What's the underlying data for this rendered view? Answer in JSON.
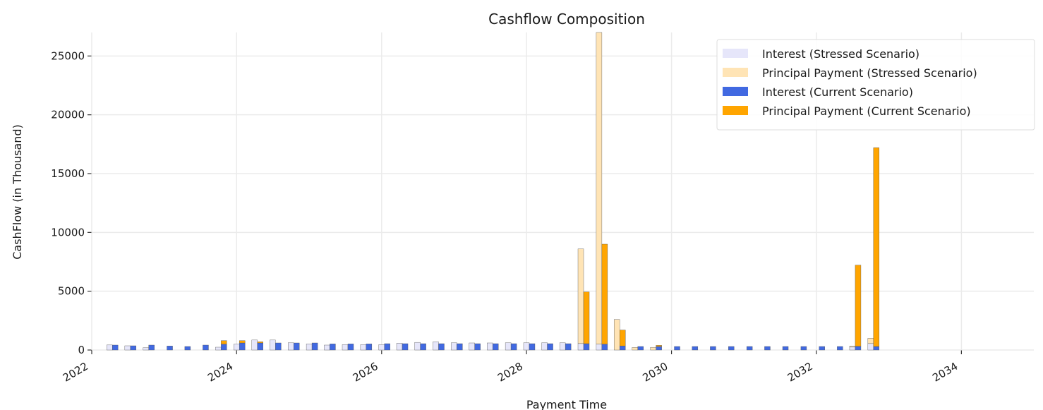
{
  "chart_data": {
    "type": "bar",
    "title": "Cashflow Composition",
    "xlabel": "Payment Time",
    "ylabel": "CashFlow (in Thousand)",
    "xlim": [
      "2022-01-01",
      "2035-01-01"
    ],
    "ylim": [
      0,
      27000
    ],
    "x_ticks": [
      "2022",
      "2024",
      "2026",
      "2028",
      "2030",
      "2032",
      "2034"
    ],
    "y_ticks": [
      0,
      5000,
      10000,
      15000,
      20000,
      25000
    ],
    "grid": true,
    "legend_position": "top-right",
    "dates": [
      "2022-04-15",
      "2022-07-15",
      "2022-10-15",
      "2023-01-15",
      "2023-04-15",
      "2023-07-15",
      "2023-10-15",
      "2024-01-15",
      "2024-04-15",
      "2024-07-15",
      "2024-10-15",
      "2025-01-15",
      "2025-04-15",
      "2025-07-15",
      "2025-10-15",
      "2026-01-15",
      "2026-04-15",
      "2026-07-15",
      "2026-10-15",
      "2027-01-15",
      "2027-04-15",
      "2027-07-15",
      "2027-10-15",
      "2028-01-15",
      "2028-04-15",
      "2028-07-15",
      "2028-10-15",
      "2029-01-15",
      "2029-04-15",
      "2029-07-15",
      "2029-10-15",
      "2030-01-15",
      "2030-04-15",
      "2030-07-15",
      "2030-10-15",
      "2031-01-15",
      "2031-04-15",
      "2031-07-15",
      "2031-10-15",
      "2032-01-15",
      "2032-04-15",
      "2032-07-15",
      "2032-10-15"
    ],
    "series": [
      {
        "name": "Interest (Stressed Scenario)",
        "color": "#e6e6fa",
        "offset": "left",
        "stack": "stressed",
        "values": [
          430,
          360,
          200,
          0,
          0,
          0,
          240,
          500,
          850,
          850,
          620,
          520,
          420,
          460,
          460,
          460,
          580,
          650,
          700,
          620,
          600,
          600,
          620,
          620,
          620,
          620,
          550,
          500,
          0,
          0,
          0,
          0,
          0,
          0,
          0,
          0,
          0,
          0,
          0,
          0,
          0,
          250,
          550
        ]
      },
      {
        "name": "Principal Payment (Stressed Scenario)",
        "color": "#ffe4b5",
        "offset": "left",
        "stack": "stressed",
        "values": [
          0,
          0,
          0,
          0,
          0,
          0,
          0,
          0,
          0,
          0,
          0,
          0,
          0,
          0,
          0,
          0,
          0,
          0,
          0,
          0,
          0,
          0,
          0,
          0,
          0,
          0,
          8050,
          26500,
          2600,
          220,
          230,
          0,
          0,
          0,
          0,
          0,
          0,
          0,
          0,
          0,
          0,
          80,
          450
        ]
      },
      {
        "name": "Interest (Current Scenario)",
        "color": "#4169e1",
        "offset": "right",
        "stack": "current",
        "values": [
          420,
          360,
          420,
          340,
          300,
          420,
          500,
          600,
          600,
          600,
          600,
          600,
          520,
          520,
          520,
          540,
          540,
          540,
          540,
          540,
          540,
          540,
          540,
          540,
          540,
          540,
          540,
          500,
          350,
          300,
          300,
          300,
          300,
          300,
          300,
          300,
          300,
          300,
          300,
          300,
          300,
          320,
          300
        ]
      },
      {
        "name": "Principal Payment (Current Scenario)",
        "color": "#ffa500",
        "offset": "right",
        "stack": "current",
        "values": [
          0,
          0,
          0,
          0,
          0,
          0,
          300,
          200,
          100,
          0,
          0,
          0,
          0,
          0,
          0,
          0,
          0,
          0,
          0,
          0,
          0,
          0,
          0,
          0,
          0,
          0,
          4400,
          8500,
          1350,
          0,
          100,
          0,
          0,
          0,
          0,
          0,
          0,
          0,
          0,
          0,
          0,
          6900,
          16900
        ]
      }
    ]
  }
}
